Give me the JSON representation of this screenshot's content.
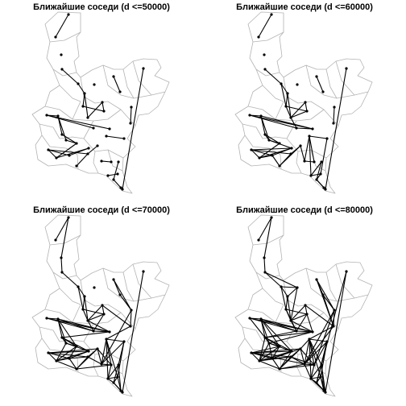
{
  "chart_data": [
    {
      "type": "network",
      "title": "Ближайшие соседи (d <=50000)",
      "threshold": 50000,
      "edges": [
        [
          0,
          1
        ],
        [
          3,
          4
        ],
        [
          4,
          6
        ],
        [
          6,
          7
        ],
        [
          6,
          10
        ],
        [
          7,
          9
        ],
        [
          8,
          9
        ],
        [
          8,
          10
        ],
        [
          11,
          12
        ],
        [
          13,
          14
        ],
        [
          15,
          17
        ],
        [
          16,
          17
        ],
        [
          17,
          18
        ],
        [
          18,
          19
        ],
        [
          19,
          21
        ],
        [
          18,
          20
        ],
        [
          20,
          21
        ],
        [
          21,
          23
        ],
        [
          22,
          23
        ],
        [
          22,
          24
        ],
        [
          23,
          25
        ],
        [
          24,
          25
        ],
        [
          25,
          27
        ],
        [
          26,
          27
        ],
        [
          27,
          28
        ],
        [
          29,
          30
        ],
        [
          31,
          32
        ],
        [
          33,
          34
        ],
        [
          35,
          36
        ],
        [
          36,
          37
        ],
        [
          38,
          39
        ]
      ]
    },
    {
      "type": "network",
      "title": "Ближайшие соседи (d <=60000)",
      "threshold": 60000,
      "edges": [
        [
          0,
          1
        ],
        [
          3,
          4
        ],
        [
          4,
          6
        ],
        [
          6,
          7
        ],
        [
          6,
          10
        ],
        [
          7,
          9
        ],
        [
          8,
          9
        ],
        [
          8,
          10
        ],
        [
          11,
          12
        ],
        [
          13,
          14
        ],
        [
          15,
          17
        ],
        [
          16,
          17
        ],
        [
          17,
          18
        ],
        [
          18,
          19
        ],
        [
          19,
          21
        ],
        [
          18,
          20
        ],
        [
          20,
          21
        ],
        [
          21,
          23
        ],
        [
          22,
          23
        ],
        [
          22,
          24
        ],
        [
          23,
          25
        ],
        [
          24,
          25
        ],
        [
          25,
          27
        ],
        [
          26,
          27
        ],
        [
          27,
          28
        ],
        [
          29,
          30
        ],
        [
          31,
          32
        ],
        [
          33,
          34
        ],
        [
          35,
          36
        ],
        [
          36,
          37
        ],
        [
          38,
          39
        ],
        [
          4,
          7
        ],
        [
          7,
          10
        ],
        [
          9,
          10
        ],
        [
          10,
          15
        ],
        [
          15,
          16
        ],
        [
          16,
          18
        ],
        [
          19,
          20
        ],
        [
          20,
          22
        ],
        [
          22,
          25
        ],
        [
          23,
          24
        ],
        [
          24,
          26
        ],
        [
          26,
          28
        ],
        [
          28,
          29
        ],
        [
          29,
          31
        ],
        [
          30,
          31
        ],
        [
          31,
          33
        ],
        [
          33,
          35
        ],
        [
          32,
          34
        ],
        [
          34,
          36
        ],
        [
          36,
          38
        ]
      ]
    },
    {
      "type": "network",
      "title": "Ближайшие соседи (d <=70000)",
      "threshold": 70000,
      "edges": [
        [
          0,
          1
        ],
        [
          0,
          2
        ],
        [
          2,
          3
        ],
        [
          3,
          4
        ],
        [
          4,
          6
        ],
        [
          6,
          7
        ],
        [
          6,
          10
        ],
        [
          7,
          9
        ],
        [
          8,
          9
        ],
        [
          8,
          10
        ],
        [
          11,
          12
        ],
        [
          13,
          14
        ],
        [
          15,
          17
        ],
        [
          16,
          17
        ],
        [
          17,
          18
        ],
        [
          18,
          19
        ],
        [
          19,
          21
        ],
        [
          18,
          20
        ],
        [
          20,
          21
        ],
        [
          21,
          23
        ],
        [
          22,
          23
        ],
        [
          22,
          24
        ],
        [
          23,
          25
        ],
        [
          24,
          25
        ],
        [
          25,
          27
        ],
        [
          26,
          27
        ],
        [
          27,
          28
        ],
        [
          29,
          30
        ],
        [
          31,
          32
        ],
        [
          33,
          34
        ],
        [
          35,
          36
        ],
        [
          36,
          37
        ],
        [
          38,
          39
        ],
        [
          4,
          7
        ],
        [
          7,
          10
        ],
        [
          9,
          10
        ],
        [
          10,
          15
        ],
        [
          15,
          16
        ],
        [
          16,
          18
        ],
        [
          19,
          20
        ],
        [
          20,
          22
        ],
        [
          22,
          25
        ],
        [
          23,
          24
        ],
        [
          24,
          26
        ],
        [
          26,
          28
        ],
        [
          28,
          29
        ],
        [
          29,
          31
        ],
        [
          30,
          31
        ],
        [
          31,
          33
        ],
        [
          33,
          35
        ],
        [
          32,
          34
        ],
        [
          34,
          36
        ],
        [
          36,
          38
        ],
        [
          9,
          15
        ],
        [
          10,
          16
        ],
        [
          15,
          18
        ],
        [
          16,
          19
        ],
        [
          18,
          21
        ],
        [
          19,
          22
        ],
        [
          21,
          24
        ],
        [
          20,
          23
        ],
        [
          23,
          26
        ],
        [
          24,
          27
        ],
        [
          25,
          28
        ],
        [
          27,
          29
        ],
        [
          28,
          30
        ],
        [
          29,
          32
        ],
        [
          30,
          33
        ],
        [
          31,
          34
        ],
        [
          32,
          35
        ],
        [
          33,
          36
        ],
        [
          34,
          37
        ],
        [
          35,
          37
        ],
        [
          37,
          38
        ],
        [
          11,
          13
        ],
        [
          12,
          13
        ],
        [
          14,
          31
        ],
        [
          13,
          29
        ],
        [
          26,
          30
        ],
        [
          8,
          14
        ]
      ]
    },
    {
      "type": "network",
      "title": "Ближайшие соседи (d <=80000)",
      "threshold": 80000,
      "edges": [
        [
          0,
          1
        ],
        [
          0,
          2
        ],
        [
          2,
          3
        ],
        [
          3,
          4
        ],
        [
          4,
          6
        ],
        [
          6,
          7
        ],
        [
          6,
          10
        ],
        [
          7,
          9
        ],
        [
          8,
          9
        ],
        [
          8,
          10
        ],
        [
          11,
          12
        ],
        [
          13,
          14
        ],
        [
          15,
          17
        ],
        [
          16,
          17
        ],
        [
          17,
          18
        ],
        [
          18,
          19
        ],
        [
          19,
          21
        ],
        [
          18,
          20
        ],
        [
          20,
          21
        ],
        [
          21,
          23
        ],
        [
          22,
          23
        ],
        [
          22,
          24
        ],
        [
          23,
          25
        ],
        [
          24,
          25
        ],
        [
          25,
          27
        ],
        [
          26,
          27
        ],
        [
          27,
          28
        ],
        [
          29,
          30
        ],
        [
          31,
          32
        ],
        [
          33,
          34
        ],
        [
          35,
          36
        ],
        [
          36,
          37
        ],
        [
          38,
          39
        ],
        [
          4,
          7
        ],
        [
          7,
          10
        ],
        [
          9,
          10
        ],
        [
          10,
          15
        ],
        [
          15,
          16
        ],
        [
          16,
          18
        ],
        [
          19,
          20
        ],
        [
          20,
          22
        ],
        [
          22,
          25
        ],
        [
          23,
          24
        ],
        [
          24,
          26
        ],
        [
          26,
          28
        ],
        [
          28,
          29
        ],
        [
          29,
          31
        ],
        [
          30,
          31
        ],
        [
          31,
          33
        ],
        [
          33,
          35
        ],
        [
          32,
          34
        ],
        [
          34,
          36
        ],
        [
          36,
          38
        ],
        [
          9,
          15
        ],
        [
          10,
          16
        ],
        [
          15,
          18
        ],
        [
          16,
          19
        ],
        [
          18,
          21
        ],
        [
          19,
          22
        ],
        [
          21,
          24
        ],
        [
          20,
          23
        ],
        [
          23,
          26
        ],
        [
          24,
          27
        ],
        [
          25,
          28
        ],
        [
          27,
          29
        ],
        [
          28,
          30
        ],
        [
          29,
          32
        ],
        [
          30,
          33
        ],
        [
          31,
          34
        ],
        [
          32,
          35
        ],
        [
          33,
          36
        ],
        [
          34,
          37
        ],
        [
          35,
          37
        ],
        [
          37,
          38
        ],
        [
          11,
          13
        ],
        [
          12,
          13
        ],
        [
          14,
          31
        ],
        [
          13,
          29
        ],
        [
          26,
          30
        ],
        [
          8,
          14
        ],
        [
          3,
          5
        ],
        [
          4,
          5
        ],
        [
          5,
          6
        ],
        [
          5,
          10
        ],
        [
          7,
          15
        ],
        [
          9,
          16
        ],
        [
          15,
          19
        ],
        [
          16,
          20
        ],
        [
          17,
          19
        ],
        [
          18,
          22
        ],
        [
          19,
          23
        ],
        [
          20,
          24
        ],
        [
          21,
          25
        ],
        [
          22,
          26
        ],
        [
          23,
          27
        ],
        [
          24,
          28
        ],
        [
          25,
          29
        ],
        [
          26,
          29
        ],
        [
          27,
          30
        ],
        [
          28,
          31
        ],
        [
          29,
          33
        ],
        [
          30,
          32
        ],
        [
          31,
          35
        ],
        [
          32,
          36
        ],
        [
          33,
          37
        ],
        [
          34,
          38
        ],
        [
          35,
          38
        ],
        [
          36,
          39
        ],
        [
          11,
          14
        ],
        [
          12,
          14
        ],
        [
          13,
          30
        ],
        [
          14,
          29
        ]
      ]
    }
  ]
}
